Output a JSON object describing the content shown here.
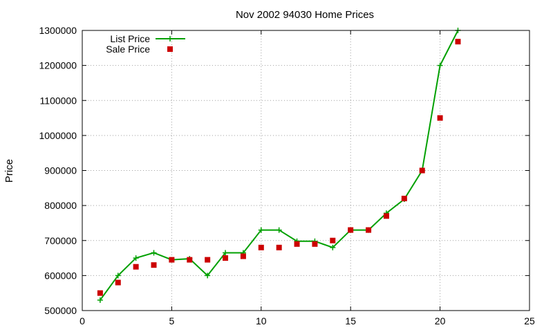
{
  "chart_data": {
    "type": "line",
    "title": "Nov 2002 94030 Home Prices",
    "xlabel": "",
    "ylabel": "Price",
    "xlim": [
      0,
      25
    ],
    "ylim": [
      500000,
      1300000
    ],
    "x_ticks": [
      0,
      5,
      10,
      15,
      20,
      25
    ],
    "y_ticks": [
      500000,
      600000,
      700000,
      800000,
      900000,
      1000000,
      1100000,
      1200000,
      1300000
    ],
    "grid": true,
    "legend_position": "top-left",
    "series": [
      {
        "name": "List Price",
        "style": "lines+points",
        "marker": "plus",
        "color": "#00a000",
        "x": [
          1,
          2,
          3,
          4,
          5,
          6,
          7,
          8,
          9,
          10,
          11,
          12,
          13,
          14,
          15,
          16,
          17,
          18,
          19,
          20,
          21
        ],
        "y": [
          530000,
          600000,
          650000,
          665000,
          645000,
          648000,
          600000,
          665000,
          665000,
          730000,
          730000,
          698000,
          698000,
          680000,
          730000,
          730000,
          778000,
          818000,
          900000,
          1200000,
          1300000
        ]
      },
      {
        "name": "Sale Price",
        "style": "points",
        "marker": "square",
        "color": "#cc0000",
        "x": [
          1,
          2,
          3,
          4,
          5,
          6,
          7,
          8,
          9,
          10,
          11,
          12,
          13,
          14,
          15,
          16,
          17,
          18,
          19,
          20,
          21
        ],
        "y": [
          550000,
          580000,
          625000,
          630000,
          645000,
          645000,
          645000,
          650000,
          655000,
          680000,
          680000,
          690000,
          690000,
          700000,
          730000,
          730000,
          770000,
          820000,
          900000,
          1050000,
          1268000
        ]
      }
    ]
  }
}
